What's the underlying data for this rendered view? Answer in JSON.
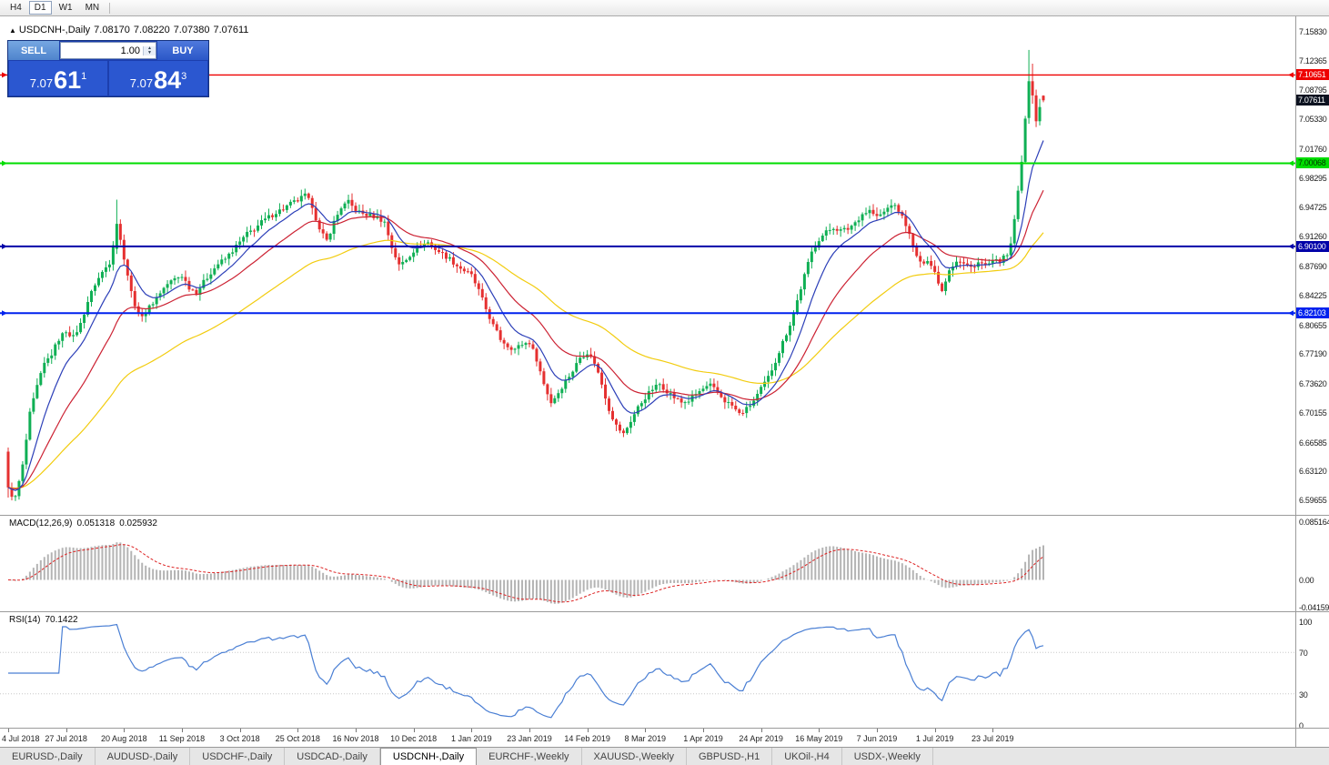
{
  "toolbar": {
    "timeframes": [
      "H4",
      "D1",
      "W1",
      "MN"
    ],
    "active_timeframe": "D1"
  },
  "chart_header": {
    "collapse_icon": "▲",
    "symbol_period": "USDCNH-,Daily",
    "open": "7.08170",
    "high": "7.08220",
    "low": "7.07380",
    "close": "7.07611"
  },
  "trade_panel": {
    "sell_label": "SELL",
    "buy_label": "BUY",
    "volume": "1.00",
    "spin_up_icon": "▲",
    "spin_down_icon": "▼",
    "sell_price": {
      "prefix": "7.07",
      "pips": "61",
      "sup": "1"
    },
    "buy_price": {
      "prefix": "7.07",
      "pips": "84",
      "sup": "3"
    }
  },
  "indicators": {
    "macd": {
      "title": "MACD(12,26,9)",
      "value_main": "0.051318",
      "value_signal": "0.025932"
    },
    "rsi": {
      "title": "RSI(14)",
      "value": "70.1422"
    }
  },
  "tabs": {
    "active": "USDCNH-,Daily",
    "items": [
      "EURUSD-,Daily",
      "AUDUSD-,Daily",
      "USDCHF-,Daily",
      "USDCAD-,Daily",
      "USDCNH-,Daily",
      "EURCHF-,Weekly",
      "XAUUSD-,Weekly",
      "GBPUSD-,H1",
      "UKOil-,H4",
      "USDX-,Weekly"
    ]
  },
  "chart_data": {
    "type": "candlestick",
    "symbol": "USDCNH",
    "timeframe": "Daily",
    "bar_count": 287,
    "title": "USDCNH-,Daily",
    "last_bar_ohlc": [
      7.0817,
      7.0822,
      7.0738,
      7.07611
    ],
    "colors": {
      "up": "#0faf54",
      "down": "#e53030",
      "background": "#ffffff"
    },
    "y_ticks": [
      "7.15830",
      "7.12365",
      "7.08795",
      "7.05330",
      "7.01760",
      "6.98295",
      "6.94725",
      "6.91260",
      "6.87690",
      "6.84225",
      "6.80655",
      "6.77190",
      "6.73620",
      "6.70155",
      "6.66585",
      "6.63120",
      "6.59655"
    ],
    "y_range": [
      6.588,
      7.168
    ],
    "x_ticks": [
      {
        "bar": 0,
        "label": "4 Jul 2018"
      },
      {
        "bar": 16,
        "label": "27 Jul 2018"
      },
      {
        "bar": 32,
        "label": "20 Aug 2018"
      },
      {
        "bar": 48,
        "label": "11 Sep 2018"
      },
      {
        "bar": 64,
        "label": "3 Oct 2018"
      },
      {
        "bar": 80,
        "label": "25 Oct 2018"
      },
      {
        "bar": 96,
        "label": "16 Nov 2018"
      },
      {
        "bar": 112,
        "label": "10 Dec 2018"
      },
      {
        "bar": 128,
        "label": "1 Jan 2019"
      },
      {
        "bar": 144,
        "label": "23 Jan 2019"
      },
      {
        "bar": 160,
        "label": "14 Feb 2019"
      },
      {
        "bar": 176,
        "label": "8 Mar 2019"
      },
      {
        "bar": 192,
        "label": "1 Apr 2019"
      },
      {
        "bar": 208,
        "label": "24 Apr 2019"
      },
      {
        "bar": 224,
        "label": "16 May 2019"
      },
      {
        "bar": 240,
        "label": "7 Jun 2019"
      },
      {
        "bar": 256,
        "label": "1 Jul 2019"
      },
      {
        "bar": 272,
        "label": "23 Jul 2019"
      }
    ],
    "hlines": [
      {
        "price": 7.10651,
        "label": "7.10651",
        "color": "#ee0000",
        "badge_bg": "#ee0000",
        "badge_fg": "#ffffff",
        "width": 1.4
      },
      {
        "price": 7.00068,
        "label": "7.00068",
        "color": "#00dd00",
        "badge_bg": "#00dd00",
        "badge_fg": "#003300",
        "width": 2
      },
      {
        "price": 6.901,
        "label": "6.90100",
        "color": "#0000a8",
        "badge_bg": "#0000a8",
        "badge_fg": "#ffffff",
        "width": 2
      },
      {
        "price": 6.82103,
        "label": "6.82103",
        "color": "#0022ee",
        "badge_bg": "#0022ee",
        "badge_fg": "#ffffff",
        "width": 2
      }
    ],
    "current_price": {
      "value": 7.07611,
      "label": "7.07611",
      "badge_bg": "#0c1220",
      "badge_fg": "#ffffff"
    },
    "ma_lines": [
      {
        "name": "slow-ma",
        "period": 60,
        "color": "#f2cc0f"
      },
      {
        "name": "medium-ma",
        "period": 25,
        "color": "#cc2233"
      },
      {
        "name": "fast-ma",
        "period": 10,
        "color": "#2c3fb8"
      }
    ],
    "anchors": [
      [
        0,
        6.615
      ],
      [
        2,
        6.6
      ],
      [
        4,
        6.638
      ],
      [
        6,
        6.7
      ],
      [
        8,
        6.733
      ],
      [
        10,
        6.76
      ],
      [
        12,
        6.772
      ],
      [
        14,
        6.79
      ],
      [
        16,
        6.8
      ],
      [
        18,
        6.792
      ],
      [
        20,
        6.808
      ],
      [
        22,
        6.835
      ],
      [
        24,
        6.856
      ],
      [
        26,
        6.87
      ],
      [
        28,
        6.882
      ],
      [
        30,
        6.928
      ],
      [
        32,
        6.888
      ],
      [
        34,
        6.846
      ],
      [
        36,
        6.818
      ],
      [
        38,
        6.822
      ],
      [
        40,
        6.834
      ],
      [
        42,
        6.846
      ],
      [
        44,
        6.856
      ],
      [
        46,
        6.862
      ],
      [
        48,
        6.866
      ],
      [
        50,
        6.852
      ],
      [
        52,
        6.846
      ],
      [
        54,
        6.858
      ],
      [
        56,
        6.87
      ],
      [
        58,
        6.88
      ],
      [
        60,
        6.886
      ],
      [
        62,
        6.896
      ],
      [
        64,
        6.906
      ],
      [
        66,
        6.916
      ],
      [
        68,
        6.922
      ],
      [
        70,
        6.93
      ],
      [
        72,
        6.936
      ],
      [
        74,
        6.942
      ],
      [
        76,
        6.946
      ],
      [
        78,
        6.952
      ],
      [
        80,
        6.956
      ],
      [
        82,
        6.962
      ],
      [
        84,
        6.95
      ],
      [
        86,
        6.92
      ],
      [
        88,
        6.908
      ],
      [
        90,
        6.93
      ],
      [
        92,
        6.948
      ],
      [
        94,
        6.954
      ],
      [
        96,
        6.944
      ],
      [
        98,
        6.94
      ],
      [
        100,
        6.938
      ],
      [
        102,
        6.936
      ],
      [
        104,
        6.93
      ],
      [
        106,
        6.9
      ],
      [
        108,
        6.878
      ],
      [
        110,
        6.886
      ],
      [
        112,
        6.896
      ],
      [
        114,
        6.902
      ],
      [
        116,
        6.906
      ],
      [
        118,
        6.898
      ],
      [
        120,
        6.892
      ],
      [
        122,
        6.886
      ],
      [
        124,
        6.878
      ],
      [
        126,
        6.872
      ],
      [
        128,
        6.866
      ],
      [
        130,
        6.848
      ],
      [
        132,
        6.826
      ],
      [
        134,
        6.806
      ],
      [
        136,
        6.79
      ],
      [
        138,
        6.782
      ],
      [
        140,
        6.778
      ],
      [
        142,
        6.784
      ],
      [
        144,
        6.786
      ],
      [
        146,
        6.766
      ],
      [
        148,
        6.736
      ],
      [
        150,
        6.714
      ],
      [
        152,
        6.726
      ],
      [
        154,
        6.74
      ],
      [
        156,
        6.752
      ],
      [
        158,
        6.768
      ],
      [
        160,
        6.774
      ],
      [
        162,
        6.762
      ],
      [
        164,
        6.736
      ],
      [
        166,
        6.706
      ],
      [
        168,
        6.686
      ],
      [
        170,
        6.676
      ],
      [
        172,
        6.692
      ],
      [
        174,
        6.708
      ],
      [
        176,
        6.72
      ],
      [
        178,
        6.73
      ],
      [
        180,
        6.736
      ],
      [
        182,
        6.728
      ],
      [
        184,
        6.72
      ],
      [
        186,
        6.714
      ],
      [
        188,
        6.716
      ],
      [
        190,
        6.724
      ],
      [
        192,
        6.73
      ],
      [
        194,
        6.734
      ],
      [
        196,
        6.726
      ],
      [
        198,
        6.716
      ],
      [
        200,
        6.71
      ],
      [
        202,
        6.7
      ],
      [
        204,
        6.706
      ],
      [
        206,
        6.716
      ],
      [
        208,
        6.73
      ],
      [
        210,
        6.744
      ],
      [
        212,
        6.764
      ],
      [
        214,
        6.786
      ],
      [
        216,
        6.808
      ],
      [
        218,
        6.836
      ],
      [
        220,
        6.866
      ],
      [
        222,
        6.894
      ],
      [
        224,
        6.91
      ],
      [
        226,
        6.918
      ],
      [
        228,
        6.924
      ],
      [
        230,
        6.92
      ],
      [
        232,
        6.922
      ],
      [
        234,
        6.93
      ],
      [
        236,
        6.94
      ],
      [
        238,
        6.944
      ],
      [
        240,
        6.936
      ],
      [
        242,
        6.942
      ],
      [
        244,
        6.952
      ],
      [
        246,
        6.944
      ],
      [
        248,
        6.928
      ],
      [
        250,
        6.9
      ],
      [
        252,
        6.88
      ],
      [
        254,
        6.886
      ],
      [
        256,
        6.87
      ],
      [
        258,
        6.848
      ],
      [
        260,
        6.874
      ],
      [
        262,
        6.884
      ],
      [
        264,
        6.88
      ],
      [
        266,
        6.876
      ],
      [
        268,
        6.882
      ],
      [
        270,
        6.878
      ],
      [
        272,
        6.882
      ],
      [
        274,
        6.884
      ],
      [
        276,
        6.89
      ],
      [
        277,
        6.902
      ],
      [
        278,
        6.934
      ],
      [
        279,
        6.967
      ],
      [
        280,
        7.002
      ],
      [
        281,
        7.055
      ],
      [
        282,
        7.099
      ],
      [
        283,
        7.082
      ],
      [
        284,
        7.051
      ],
      [
        285,
        7.068
      ],
      [
        286,
        7.07611
      ]
    ],
    "overrides": {
      "0": [
        6.655,
        6.66,
        6.6,
        6.612
      ],
      "1": [
        6.612,
        6.618,
        6.5966,
        6.601
      ],
      "30": [
        6.898,
        6.957,
        6.892,
        6.928
      ],
      "282": [
        7.055,
        7.1365,
        7.048,
        7.099
      ],
      "283": [
        7.099,
        7.12,
        7.072,
        7.082
      ],
      "284": [
        7.082,
        7.089,
        7.044,
        7.051
      ],
      "285": [
        7.051,
        7.078,
        7.046,
        7.068
      ],
      "286": [
        7.0817,
        7.0822,
        7.0738,
        7.07611
      ]
    },
    "macd": {
      "params": [
        12,
        26,
        9
      ],
      "axis_labels": [
        "0.085164",
        "0.00",
        "-0.04159"
      ],
      "current_main": 0.051318,
      "current_signal": 0.025932,
      "histogram_color": "#b4b4b4",
      "signal_color": "#dd2222"
    },
    "rsi": {
      "period": 14,
      "axis_labels": [
        "100",
        "70",
        "30",
        "0"
      ],
      "levels": [
        70,
        30
      ],
      "current": 70.1422,
      "line_color": "#4a7fd4",
      "level_color": "#c8c8c8"
    }
  }
}
